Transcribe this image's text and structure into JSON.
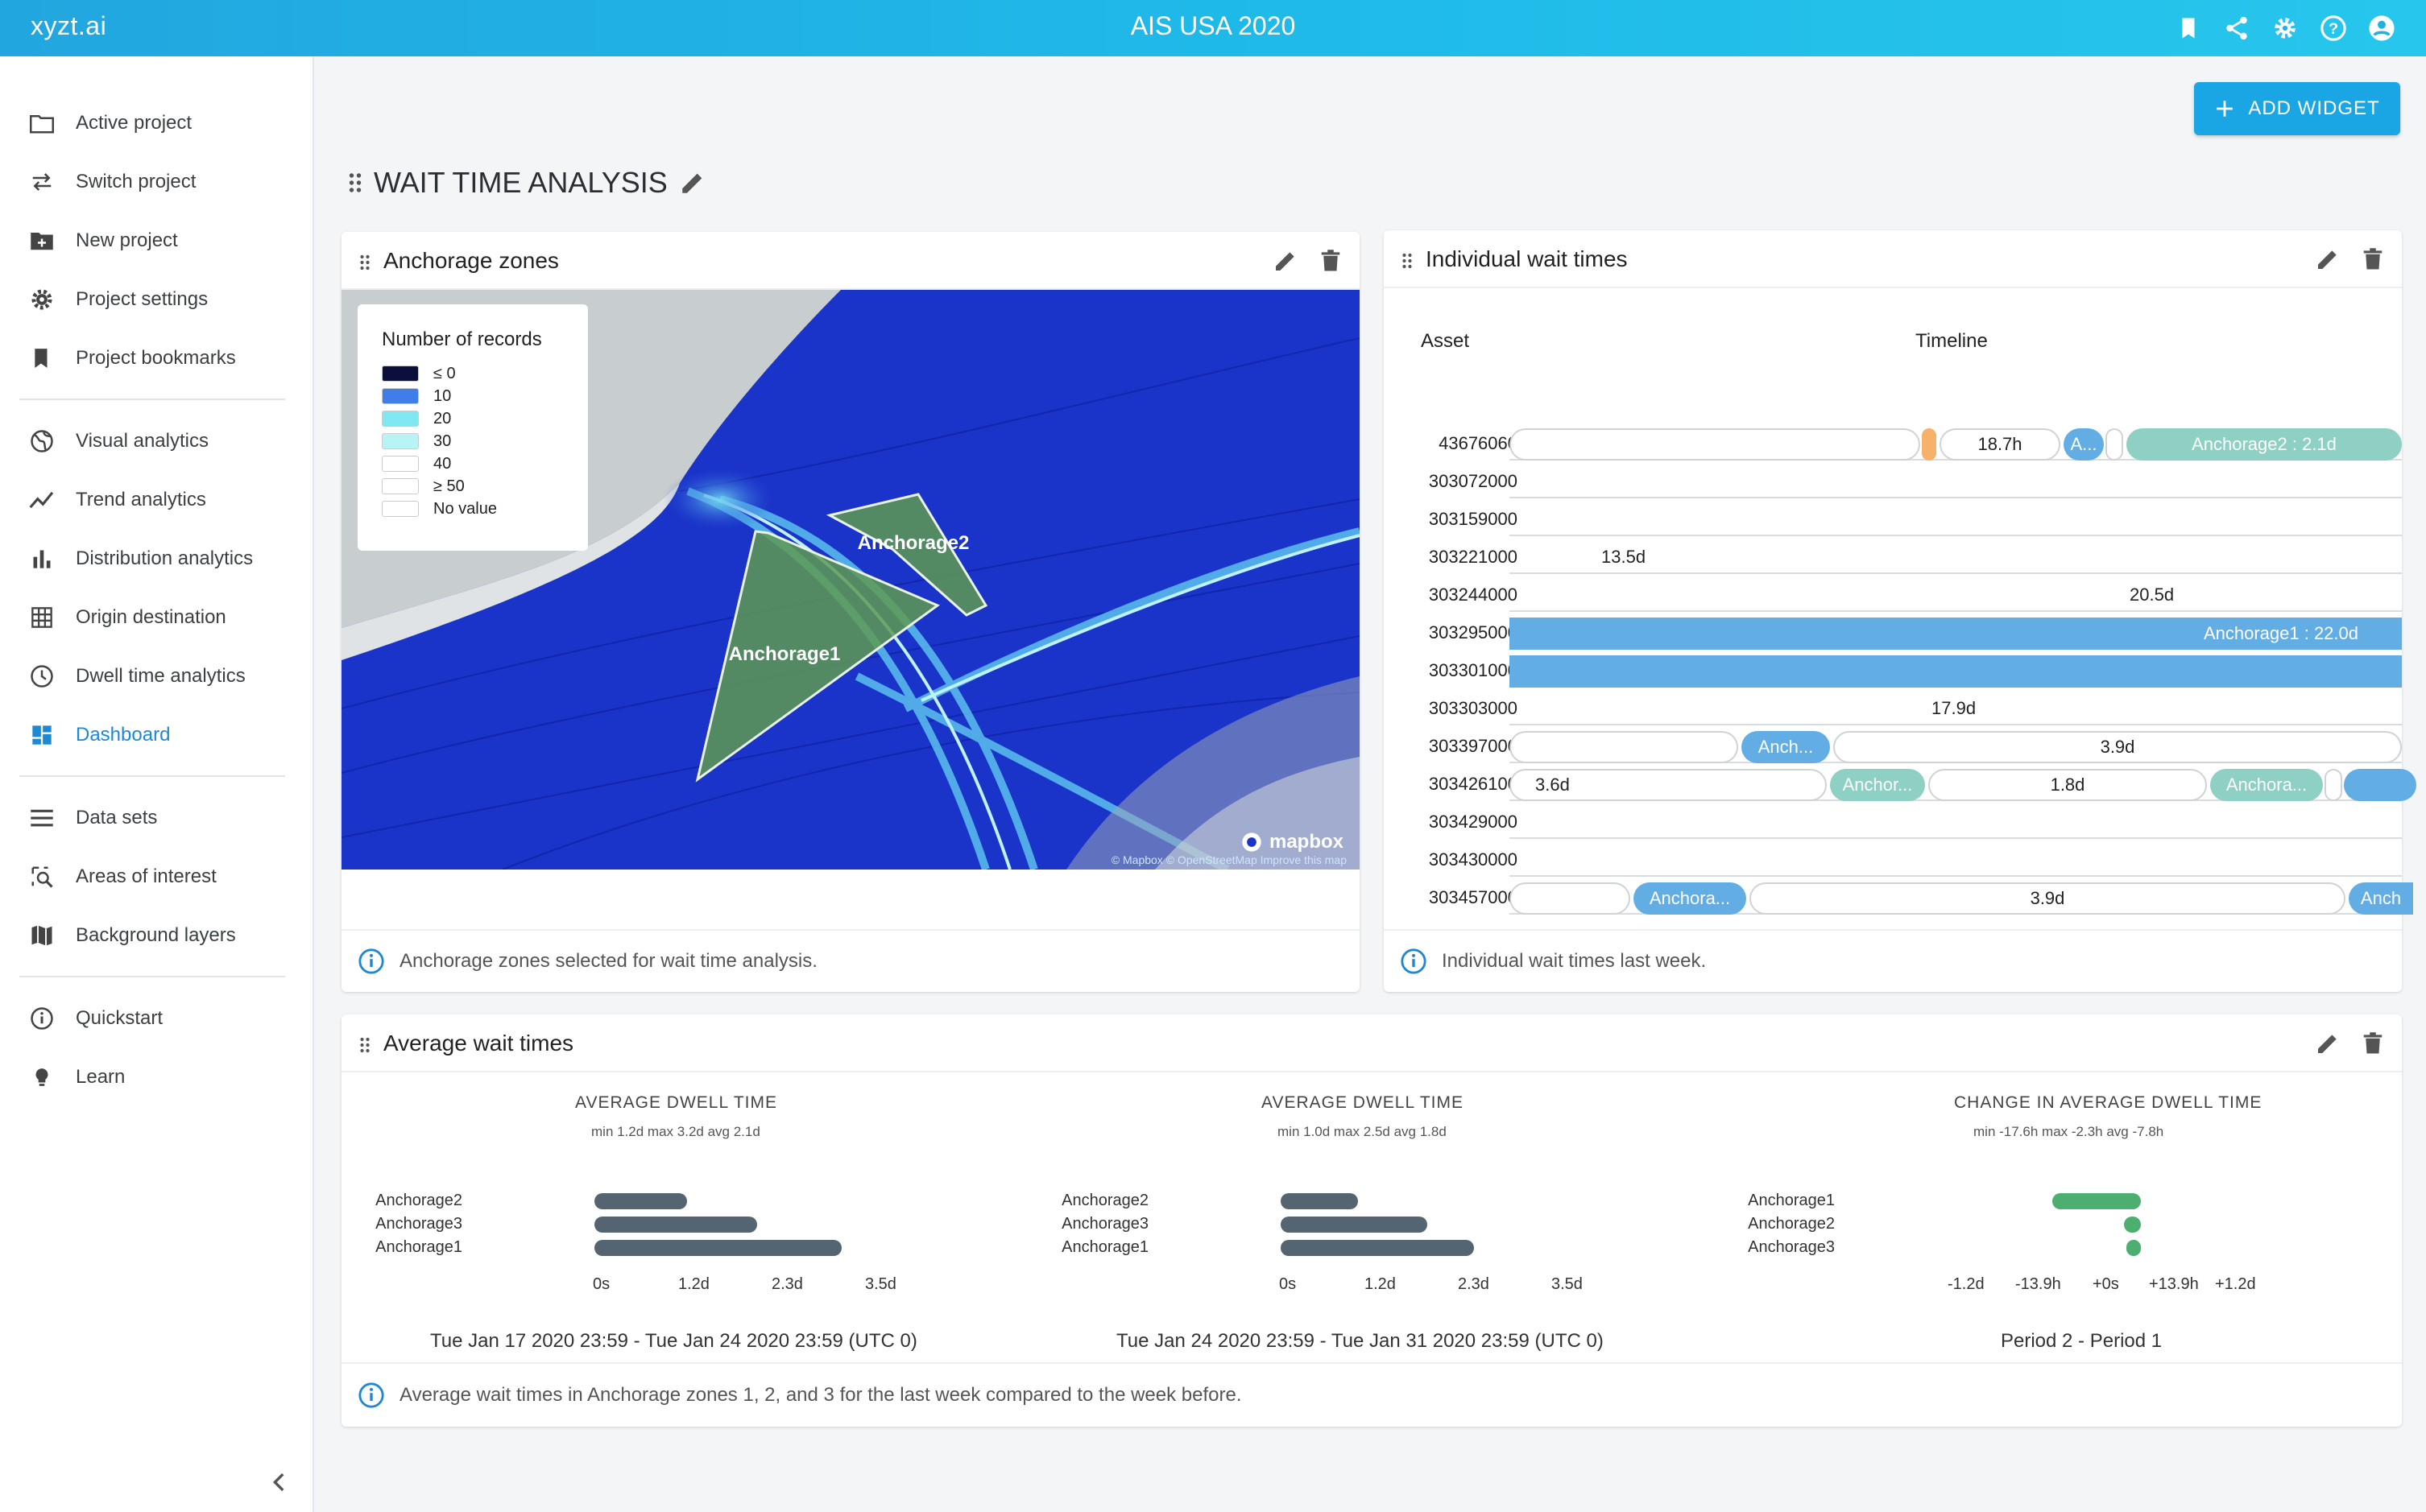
{
  "app": {
    "brand": "xyzt.ai",
    "title": "AIS USA 2020",
    "top_icons": [
      "bookmark-icon",
      "share-icon",
      "gear-icon",
      "help-icon",
      "account-icon"
    ]
  },
  "sidebar": {
    "groups": [
      [
        {
          "label": "Active project",
          "icon": "folder-icon"
        },
        {
          "label": "Switch project",
          "icon": "swap-icon"
        },
        {
          "label": "New project",
          "icon": "new-folder-icon"
        },
        {
          "label": "Project settings",
          "icon": "gear-icon"
        },
        {
          "label": "Project bookmarks",
          "icon": "bookmark-icon"
        }
      ],
      [
        {
          "label": "Visual analytics",
          "icon": "globe-icon"
        },
        {
          "label": "Trend analytics",
          "icon": "trend-icon"
        },
        {
          "label": "Distribution analytics",
          "icon": "bar-chart-icon"
        },
        {
          "label": "Origin destination",
          "icon": "grid-icon"
        },
        {
          "label": "Dwell time analytics",
          "icon": "clock-icon"
        },
        {
          "label": "Dashboard",
          "icon": "dashboard-icon",
          "active": true
        }
      ],
      [
        {
          "label": "Data sets",
          "icon": "list-icon"
        },
        {
          "label": "Areas of interest",
          "icon": "area-search-icon"
        },
        {
          "label": "Background layers",
          "icon": "map-icon"
        }
      ],
      [
        {
          "label": "Quickstart",
          "icon": "info-icon"
        },
        {
          "label": "Learn",
          "icon": "bulb-icon"
        }
      ]
    ]
  },
  "main": {
    "add_widget_label": "ADD WIDGET",
    "section_title": "WAIT TIME ANALYSIS"
  },
  "anchorage_card": {
    "title": "Anchorage zones",
    "footer": "Anchorage zones selected for wait time analysis.",
    "legend": {
      "title": "Number of records",
      "items": [
        {
          "label": "≤ 0",
          "color": "#0a0f3c"
        },
        {
          "label": "10",
          "color": "#3f7de8"
        },
        {
          "label": "20",
          "color": "#7fe8f2"
        },
        {
          "label": "30",
          "color": "#b8f4f6"
        },
        {
          "label": "40",
          "color": "#ffffff"
        },
        {
          "label": "≥ 50",
          "color": "#ffffff"
        },
        {
          "label": "No value",
          "color": "#ffffff"
        }
      ]
    },
    "zones": [
      "Anchorage1",
      "Anchorage2"
    ],
    "mapbox_label": "mapbox",
    "attribution": "© Mapbox © OpenStreetMap Improve this map"
  },
  "wait_card": {
    "title": "Individual wait times",
    "footer": "Individual wait times last week.",
    "col_asset": "Asset",
    "col_timeline": "Timeline",
    "rows": [
      {
        "id": "43676060"
      },
      {
        "id": "303072000"
      },
      {
        "id": "303159000"
      },
      {
        "id": "303221000"
      },
      {
        "id": "303244000"
      },
      {
        "id": "303295000"
      },
      {
        "id": "303301000"
      },
      {
        "id": "303303000"
      },
      {
        "id": "303397000"
      },
      {
        "id": "303426100"
      },
      {
        "id": "303429000"
      },
      {
        "id": "303430000"
      },
      {
        "id": "303457000"
      }
    ],
    "seg_labels": {
      "r0_a": "18.7h",
      "r0_b": "A...",
      "r0_c": "Anchorage2 : 2.1d",
      "r3_a": "13.5d",
      "r4_a": "20.5d",
      "r5_a": "Anchorage1 : 22.0d",
      "r7_a": "17.9d",
      "r8_a": "Anch...",
      "r8_b": "3.9d",
      "r9_a": "3.6d",
      "r9_b": "Anchor...",
      "r9_c": "1.8d",
      "r9_d": "Anchora...",
      "r12_a": "Anchora...",
      "r12_b": "3.9d",
      "r12_c": "Anch"
    }
  },
  "average_card": {
    "title": "Average wait times",
    "footer": "Average wait times in Anchorage zones 1, 2, and 3 for the last week compared to the week before.",
    "charts": [
      {
        "title": "AVERAGE DWELL TIME",
        "subtitle": "min 1.2d max 3.2d avg 2.1d",
        "period": "Tue Jan 17 2020 23:59 - Tue Jan 24 2020 23:59 (UTC 0)",
        "color": "#546470",
        "categories": [
          "Anchorage2",
          "Anchorage3",
          "Anchorage1"
        ],
        "values_days": [
          1.2,
          2.1,
          3.2
        ],
        "ticks": [
          "0s",
          "1.2d",
          "2.3d",
          "3.5d"
        ],
        "xlim_days": [
          0,
          3.5
        ]
      },
      {
        "title": "AVERAGE DWELL TIME",
        "subtitle": "min 1.0d max 2.5d avg 1.8d",
        "period": "Tue Jan 24 2020 23:59 - Tue Jan 31 2020 23:59 (UTC 0)",
        "color": "#546470",
        "categories": [
          "Anchorage2",
          "Anchorage3",
          "Anchorage1"
        ],
        "values_days": [
          1.0,
          1.9,
          2.5
        ],
        "ticks": [
          "0s",
          "1.2d",
          "2.3d",
          "3.5d"
        ],
        "xlim_days": [
          0,
          3.5
        ]
      },
      {
        "title": "CHANGE IN AVERAGE DWELL TIME",
        "subtitle": "min -17.6h max -2.3h avg -7.8h",
        "period": "Period 2 - Period 1",
        "color": "#4caf70",
        "categories": [
          "Anchorage1",
          "Anchorage2",
          "Anchorage3"
        ],
        "values_hours": [
          -17.6,
          -3.4,
          -2.3
        ],
        "ticks": [
          "-1.2d",
          "-13.9h",
          "+0s",
          "+13.9h",
          "+1.2d"
        ]
      }
    ]
  }
}
